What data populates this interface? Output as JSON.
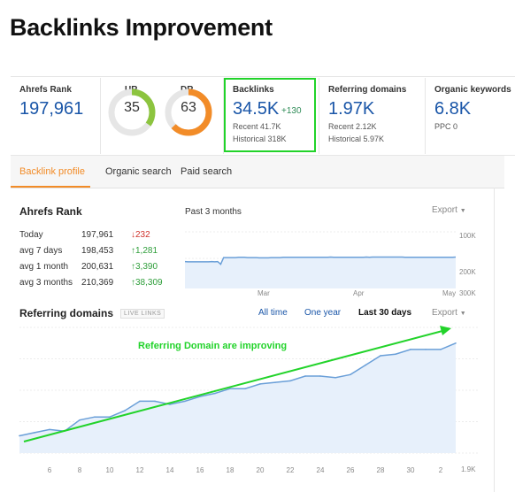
{
  "page_title": "Backlinks Improvement",
  "metrics": {
    "ahrefs_rank": {
      "label": "Ahrefs Rank",
      "value": "197,961"
    },
    "ur": {
      "label": "UR",
      "value": "35",
      "fraction": 0.35,
      "color": "#8cc43f"
    },
    "dr": {
      "label": "DR",
      "value": "63",
      "fraction": 0.63,
      "color": "#f28c28"
    },
    "backlinks": {
      "label": "Backlinks",
      "value": "34.5K",
      "delta": "+130",
      "recent": "Recent 41.7K",
      "historical": "Historical 318K"
    },
    "referring_domains": {
      "label": "Referring domains",
      "value": "1.97K",
      "recent": "Recent 2.12K",
      "historical": "Historical 5.97K"
    },
    "organic_keywords": {
      "label": "Organic keywords",
      "value": "6.8K",
      "ppc": "PPC 0"
    }
  },
  "tabs": [
    "Backlink profile",
    "Organic search",
    "Paid search"
  ],
  "ahrefs_rank_section": {
    "title": "Ahrefs Rank",
    "period": "Past 3 months",
    "export": "Export",
    "rows": [
      {
        "label": "Today",
        "value": "197,961",
        "change": "232",
        "dir": "down"
      },
      {
        "label": "avg 7 days",
        "value": "198,453",
        "change": "1,281",
        "dir": "up"
      },
      {
        "label": "avg 1 month",
        "value": "200,631",
        "change": "3,390",
        "dir": "up"
      },
      {
        "label": "avg 3 months",
        "value": "210,369",
        "change": "38,309",
        "dir": "up"
      }
    ]
  },
  "rank_chart": {
    "y_ticks": [
      "100K",
      "200K",
      "300K"
    ],
    "x_ticks": [
      "Mar",
      "Apr",
      "May"
    ],
    "values": [
      212,
      213,
      213,
      213,
      213,
      213,
      213,
      213,
      213,
      212,
      213,
      212,
      222,
      197,
      197,
      197,
      197,
      197,
      196,
      196,
      196,
      197,
      197,
      197,
      197,
      198,
      198,
      198,
      198,
      197,
      197,
      197,
      197,
      196,
      196,
      196,
      196,
      196,
      196,
      196,
      196,
      196,
      196,
      196,
      196,
      196,
      196,
      196,
      196,
      195,
      196,
      196,
      196,
      196,
      196,
      196,
      196,
      196,
      196,
      196,
      196,
      195,
      196,
      195,
      195,
      195,
      195,
      195,
      195,
      195,
      195,
      195,
      195,
      195,
      196,
      196,
      196,
      196,
      196,
      196,
      196,
      196,
      196,
      196,
      196,
      196,
      196,
      196,
      196,
      196,
      196,
      195
    ]
  },
  "referring_section": {
    "title": "Referring domains",
    "badge": "LIVE LINKS",
    "ranges": [
      "All time",
      "One year",
      "Last 30 days"
    ],
    "export": "Export",
    "annotation": "Referring Domain are improving"
  },
  "chart_data": {
    "type": "area",
    "x": [
      "5",
      "6",
      "7",
      "8",
      "9",
      "10",
      "11",
      "12",
      "13",
      "14",
      "15",
      "16",
      "17",
      "18",
      "19",
      "20",
      "21",
      "22",
      "23",
      "24",
      "25",
      "26",
      "27",
      "28",
      "29",
      "30",
      "1",
      "2",
      "3",
      "4"
    ],
    "x_tick_labels": [
      "6",
      "8",
      "10",
      "12",
      "14",
      "16",
      "18",
      "20",
      "22",
      "24",
      "26",
      "28",
      "30",
      "2"
    ],
    "y_tick_labels": [
      "1.9K"
    ],
    "values": [
      1911,
      1913,
      1915,
      1914,
      1921,
      1923,
      1923,
      1927,
      1933,
      1933,
      1931,
      1933,
      1936,
      1938,
      1941,
      1941,
      1944,
      1945,
      1946,
      1949,
      1949,
      1948,
      1950,
      1956,
      1962,
      1963,
      1966,
      1966,
      1966,
      1970
    ],
    "ylim": [
      1900,
      1980
    ],
    "trend_line": true
  },
  "colors": {
    "accent": "#f28c28",
    "link": "#1a56a8",
    "highlight": "#22d32a",
    "line": "#6a9fd8",
    "fill": "#e7f0fb"
  }
}
